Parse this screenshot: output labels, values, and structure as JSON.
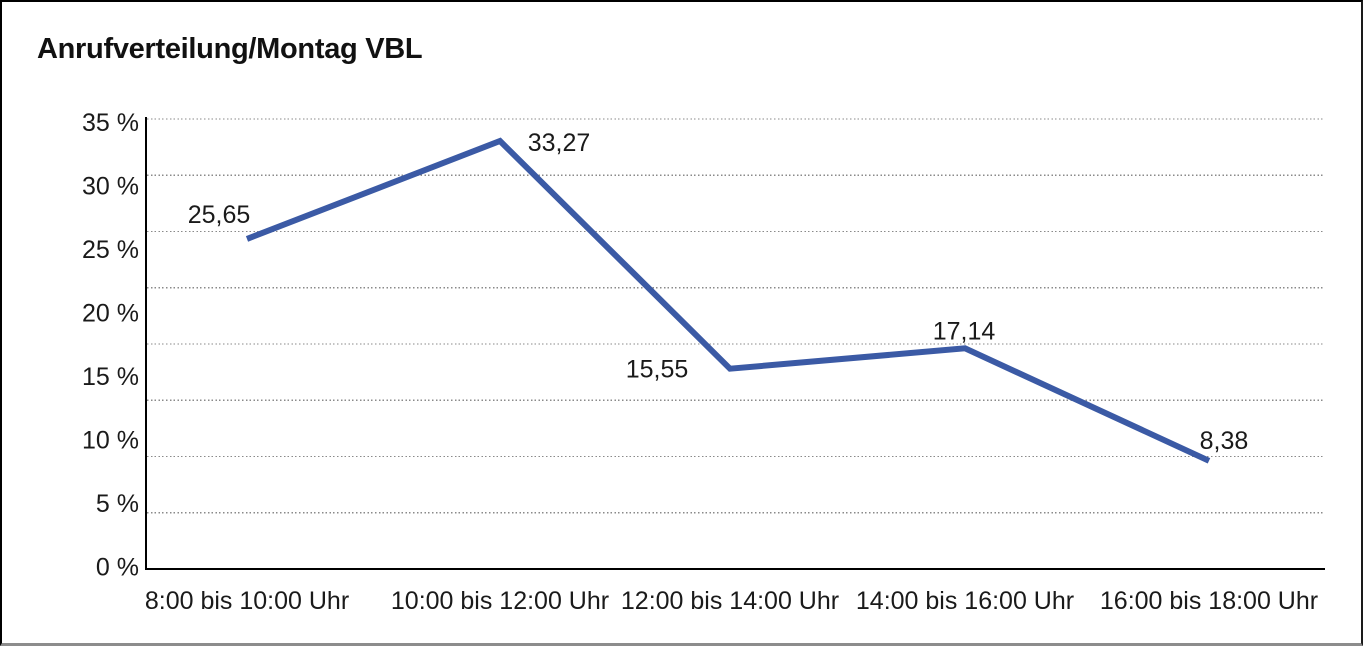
{
  "title": "Anrufverteilung/Montag VBL",
  "chart_data": {
    "type": "line",
    "title": "Anrufverteilung/Montag VBL",
    "categories": [
      "8:00 bis 10:00 Uhr",
      "10:00 bis 12:00 Uhr",
      "12:00 bis 14:00 Uhr",
      "14:00 bis 16:00 Uhr",
      "16:00 bis 18:00 Uhr"
    ],
    "values": [
      25.65,
      33.27,
      15.55,
      17.14,
      8.38
    ],
    "value_labels": [
      "25,65",
      "33,27",
      "15,55",
      "17,14",
      "8,38"
    ],
    "y_ticks": [
      35,
      30,
      25,
      20,
      15,
      10,
      5,
      0
    ],
    "y_tick_labels": [
      "35 %",
      "30 %",
      "25 %",
      "20 %",
      "15 %",
      "10 %",
      "5 %",
      "0 %"
    ],
    "ylim": [
      0,
      35
    ],
    "xlabel": "",
    "ylabel": "",
    "legend": "none",
    "grid": "horizontal-dotted",
    "colors": {
      "line": "#3B5AA5",
      "grid": "#8a8a8a",
      "axis": "#000000",
      "text": "#1a1a1a"
    }
  }
}
